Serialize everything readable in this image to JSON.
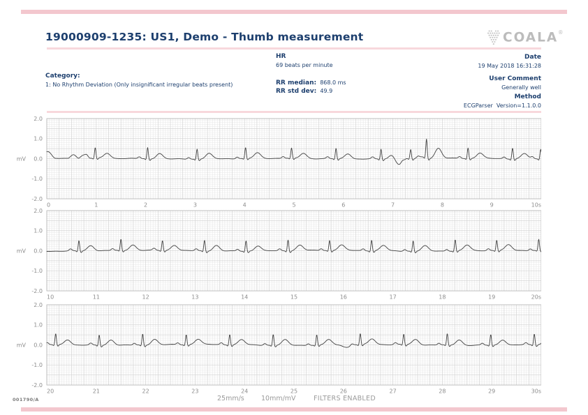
{
  "header": {
    "title": "19000909-1235: US1, Demo - Thumb measurement"
  },
  "logo": {
    "text": "COALA",
    "registered": "®",
    "color": "#bcbcbc"
  },
  "info": {
    "category_label": "Category:",
    "category_value": "1: No Rhythm Deviation (Only insignificant irregular beats present)",
    "hr_label": "HR",
    "hr_value": "69 beats per minute",
    "rr_median_label": "RR median:",
    "rr_median_value": "868.0 ms",
    "rr_std_label": "RR std dev:",
    "rr_std_value": "49.9",
    "date_label": "Date",
    "date_value": "19 May 2018 16:31:28",
    "comment_label": "User Comment",
    "comment_value": "Generally well",
    "method_label": "Method",
    "method_value": "ECGParser  Version=1.1.0.0"
  },
  "footer": {
    "doc_number": "001790/A",
    "speed": "25mm/s",
    "gain": "10mm/mV",
    "filters": "FILTERS ENABLED"
  },
  "colors": {
    "navy_text": "#1d3f6e",
    "accent_pink": "#f3c7ce",
    "divider_pink": "#f8d8dc",
    "grid_minor": "#e8e8e8",
    "grid_major": "#d3d3d3",
    "plot_border": "#b5b5b5",
    "trace": "#404040",
    "axis_text": "#8c8c8c",
    "logo_gray": "#bcbcbc",
    "footer_gray": "#9a9a9a"
  },
  "chart_data": [
    {
      "type": "line",
      "name": "ecg-strip-1",
      "ylabel": "mV",
      "xlim": [
        0,
        10
      ],
      "ylim": [
        -2.0,
        2.0
      ],
      "x_ticks": [
        "0",
        "1",
        "2",
        "3",
        "4",
        "5",
        "6",
        "7",
        "8",
        "9",
        "10s"
      ],
      "y_ticks": [
        "2.0",
        "1.0",
        "0.0",
        "-1.0",
        "-2.0"
      ],
      "grid": true,
      "waveform_model": "beats = [time_s, R_amplitude_mV, T_amplitude_mV]; events = [t_start_s, t_end_s, bump_amplitude_mV]",
      "beats": [
        [
          0.98,
          0.52,
          0.26
        ],
        [
          2.04,
          0.56,
          0.28
        ],
        [
          3.04,
          0.5,
          0.27
        ],
        [
          4.02,
          0.54,
          0.27
        ],
        [
          4.95,
          0.5,
          0.26
        ],
        [
          5.85,
          0.52,
          0.27
        ],
        [
          6.76,
          0.5,
          0.26
        ],
        [
          7.36,
          0.45,
          0.08
        ],
        [
          7.68,
          0.95,
          0.5
        ],
        [
          8.52,
          0.52,
          0.27
        ],
        [
          9.42,
          0.55,
          0.27
        ],
        [
          9.99,
          0.5,
          0.2
        ]
      ],
      "events": [
        [
          -0.15,
          0.18,
          0.35
        ],
        [
          0.42,
          0.66,
          0.2
        ],
        [
          0.62,
          0.88,
          0.16
        ],
        [
          6.92,
          7.3,
          -0.32
        ]
      ]
    },
    {
      "type": "line",
      "name": "ecg-strip-2",
      "ylabel": "mV",
      "xlim": [
        10,
        20
      ],
      "ylim": [
        -2.0,
        2.0
      ],
      "x_ticks": [
        "10",
        "11",
        "12",
        "13",
        "14",
        "15",
        "16",
        "17",
        "18",
        "19",
        "20s"
      ],
      "y_ticks": [
        "2.0",
        "1.0",
        "0.0",
        "-1.0",
        "-2.0"
      ],
      "grid": true,
      "waveform_model": "beats = [time_s, R_amplitude_mV, T_amplitude_mV]; events = [t_start_s, t_end_s, bump_amplitude_mV]",
      "beats": [
        [
          10.65,
          0.52,
          0.27
        ],
        [
          11.5,
          0.56,
          0.28
        ],
        [
          12.34,
          0.5,
          0.27
        ],
        [
          13.19,
          0.54,
          0.28
        ],
        [
          14.03,
          0.52,
          0.26
        ],
        [
          14.88,
          0.55,
          0.27
        ],
        [
          15.72,
          0.5,
          0.27
        ],
        [
          16.57,
          0.54,
          0.27
        ],
        [
          17.41,
          0.52,
          0.26
        ],
        [
          18.26,
          0.56,
          0.28
        ],
        [
          19.1,
          0.52,
          0.27
        ],
        [
          19.95,
          0.55,
          0.24
        ]
      ],
      "events": []
    },
    {
      "type": "line",
      "name": "ecg-strip-3",
      "ylabel": "mV",
      "xlim": [
        20,
        30
      ],
      "ylim": [
        -2.0,
        2.0
      ],
      "x_ticks": [
        "20",
        "21",
        "22",
        "23",
        "24",
        "25",
        "26",
        "27",
        "28",
        "29",
        "30s"
      ],
      "y_ticks": [
        "2.0",
        "1.0",
        "0.0",
        "-1.0",
        "-2.0"
      ],
      "grid": true,
      "waveform_model": "beats = [time_s, R_amplitude_mV, T_amplitude_mV]; events = [t_start_s, t_end_s, bump_amplitude_mV]",
      "beats": [
        [
          20.18,
          0.55,
          0.27
        ],
        [
          21.06,
          0.52,
          0.27
        ],
        [
          21.94,
          0.56,
          0.28
        ],
        [
          22.82,
          0.5,
          0.27
        ],
        [
          23.7,
          0.53,
          0.26
        ],
        [
          24.58,
          0.55,
          0.27
        ],
        [
          25.46,
          0.51,
          0.27
        ],
        [
          26.34,
          0.55,
          0.28
        ],
        [
          27.22,
          0.52,
          0.26
        ],
        [
          28.1,
          0.56,
          0.27
        ],
        [
          28.98,
          0.53,
          0.27
        ],
        [
          29.86,
          0.55,
          0.24
        ]
      ],
      "events": [
        [
          25.9,
          26.25,
          -0.12
        ]
      ]
    }
  ]
}
